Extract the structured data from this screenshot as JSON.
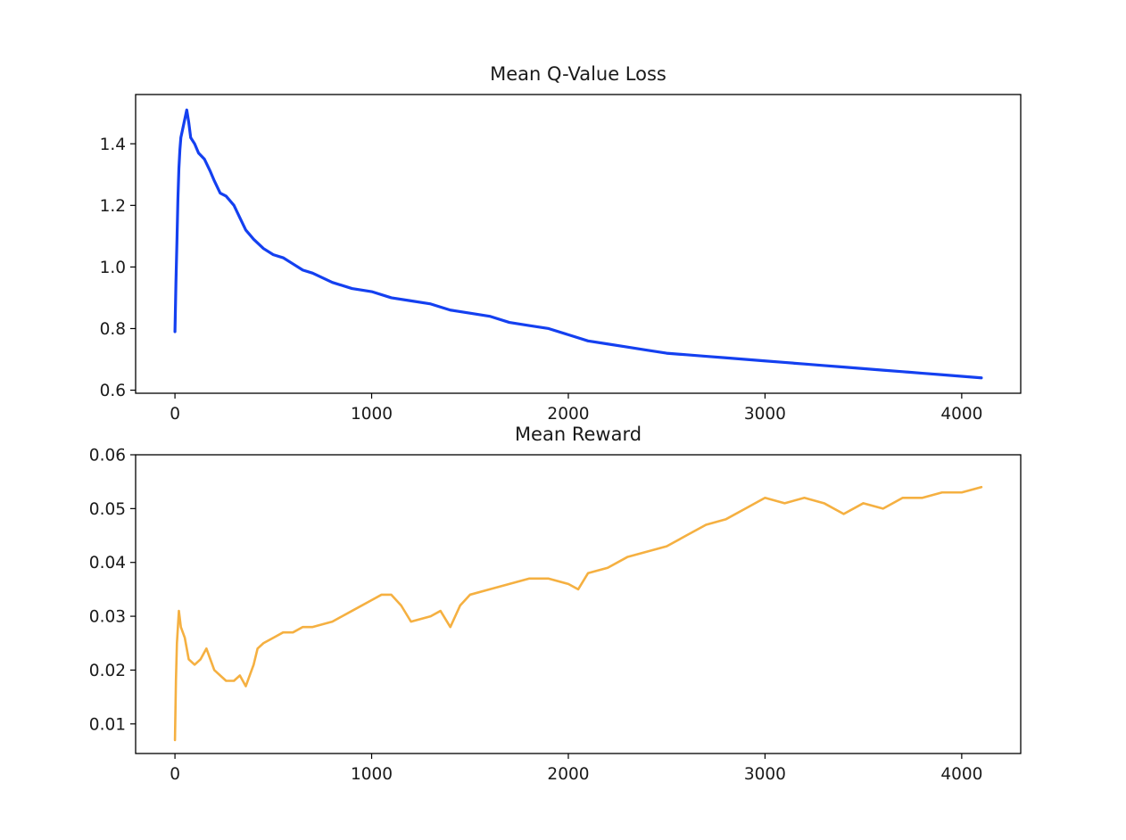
{
  "chart_data": [
    {
      "type": "line",
      "title": "Mean Q-Value Loss",
      "xlabel": "",
      "ylabel": "",
      "xlim": [
        -200,
        4300
      ],
      "ylim": [
        0.59,
        1.56
      ],
      "x_ticks": [
        0,
        1000,
        2000,
        3000,
        4000
      ],
      "y_ticks": [
        0.6,
        0.8,
        1.0,
        1.2,
        1.4
      ],
      "x_tick_labels": [
        "0",
        "1000",
        "2000",
        "3000",
        "4000"
      ],
      "y_tick_labels": [
        "0.6",
        "0.8",
        "1.0",
        "1.2",
        "1.4"
      ],
      "grid": false,
      "series": [
        {
          "color": "#1440f0",
          "x": [
            0,
            5,
            10,
            15,
            20,
            25,
            30,
            40,
            50,
            60,
            70,
            80,
            100,
            120,
            150,
            180,
            200,
            230,
            260,
            300,
            330,
            360,
            400,
            450,
            500,
            550,
            600,
            650,
            700,
            800,
            900,
            1000,
            1100,
            1200,
            1300,
            1400,
            1500,
            1600,
            1700,
            1800,
            1900,
            2000,
            2100,
            2200,
            2300,
            2400,
            2500,
            2600,
            2700,
            2800,
            2900,
            3000,
            3100,
            3200,
            3300,
            3400,
            3500,
            3600,
            3700,
            3800,
            3900,
            4000,
            4100
          ],
          "y": [
            0.79,
            0.95,
            1.08,
            1.22,
            1.32,
            1.38,
            1.42,
            1.45,
            1.48,
            1.51,
            1.47,
            1.42,
            1.4,
            1.37,
            1.35,
            1.31,
            1.28,
            1.24,
            1.23,
            1.2,
            1.16,
            1.12,
            1.09,
            1.06,
            1.04,
            1.03,
            1.01,
            0.99,
            0.98,
            0.95,
            0.93,
            0.92,
            0.9,
            0.89,
            0.88,
            0.86,
            0.85,
            0.84,
            0.82,
            0.81,
            0.8,
            0.78,
            0.76,
            0.75,
            0.74,
            0.73,
            0.72,
            0.715,
            0.71,
            0.705,
            0.7,
            0.695,
            0.69,
            0.685,
            0.68,
            0.675,
            0.67,
            0.665,
            0.66,
            0.655,
            0.65,
            0.645,
            0.64
          ]
        }
      ]
    },
    {
      "type": "line",
      "title": "Mean Reward",
      "xlabel": "",
      "ylabel": "",
      "xlim": [
        -200,
        4300
      ],
      "ylim": [
        0.0045,
        0.06
      ],
      "x_ticks": [
        0,
        1000,
        2000,
        3000,
        4000
      ],
      "y_ticks": [
        0.01,
        0.02,
        0.03,
        0.04,
        0.05,
        0.06
      ],
      "x_tick_labels": [
        "0",
        "1000",
        "2000",
        "3000",
        "4000"
      ],
      "y_tick_labels": [
        "0.01",
        "0.02",
        "0.03",
        "0.04",
        "0.05",
        "0.06"
      ],
      "grid": false,
      "series": [
        {
          "color": "#f5b041",
          "x": [
            0,
            5,
            10,
            20,
            30,
            50,
            70,
            100,
            130,
            160,
            180,
            200,
            230,
            260,
            300,
            330,
            360,
            400,
            420,
            450,
            500,
            550,
            600,
            650,
            700,
            800,
            900,
            1000,
            1050,
            1100,
            1150,
            1200,
            1300,
            1350,
            1400,
            1450,
            1500,
            1600,
            1700,
            1800,
            1900,
            2000,
            2050,
            2100,
            2200,
            2300,
            2400,
            2500,
            2600,
            2700,
            2800,
            2900,
            3000,
            3100,
            3200,
            3300,
            3400,
            3500,
            3600,
            3700,
            3800,
            3900,
            4000,
            4100
          ],
          "y": [
            0.007,
            0.018,
            0.025,
            0.031,
            0.028,
            0.026,
            0.022,
            0.021,
            0.022,
            0.024,
            0.022,
            0.02,
            0.019,
            0.018,
            0.018,
            0.019,
            0.017,
            0.021,
            0.024,
            0.025,
            0.026,
            0.027,
            0.027,
            0.028,
            0.028,
            0.029,
            0.031,
            0.033,
            0.034,
            0.034,
            0.032,
            0.029,
            0.03,
            0.031,
            0.028,
            0.032,
            0.034,
            0.035,
            0.036,
            0.037,
            0.037,
            0.036,
            0.035,
            0.038,
            0.039,
            0.041,
            0.042,
            0.043,
            0.045,
            0.047,
            0.048,
            0.05,
            0.052,
            0.051,
            0.052,
            0.051,
            0.049,
            0.051,
            0.05,
            0.052,
            0.052,
            0.053,
            0.053,
            0.054
          ]
        }
      ]
    }
  ]
}
